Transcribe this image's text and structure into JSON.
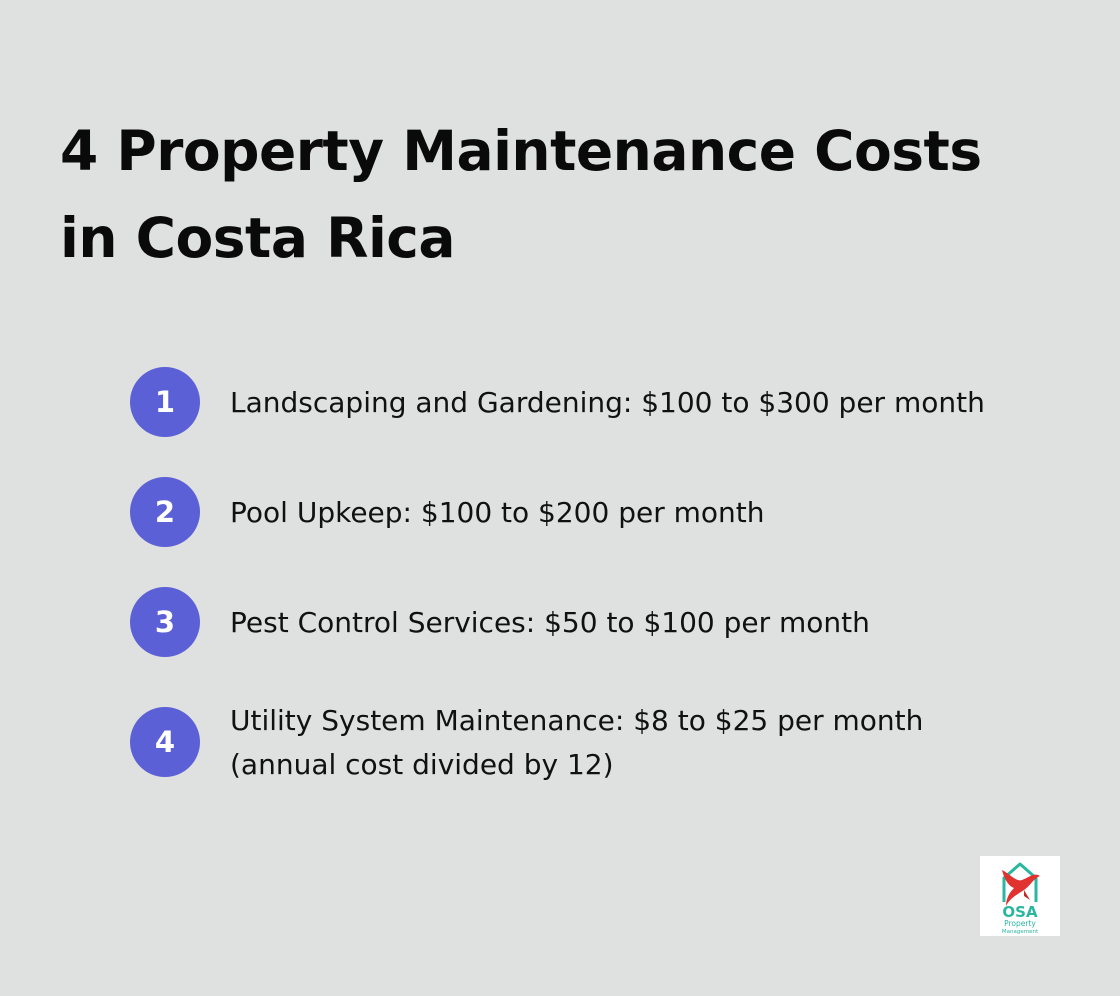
{
  "title": {
    "line1": "4 Property Maintenance Costs",
    "line2": "in Costa Rica"
  },
  "items": [
    {
      "number": "1",
      "lines": [
        "Landscaping and Gardening: $100 to $300 per month"
      ]
    },
    {
      "number": "2",
      "lines": [
        "Pool Upkeep: $100 to $200 per month"
      ]
    },
    {
      "number": "3",
      "lines": [
        "Pest Control Services: $50 to $100 per month"
      ]
    },
    {
      "number": "4",
      "lines": [
        "Utility System Maintenance: $8 to $25 per month",
        "(annual cost divided by 12)"
      ]
    }
  ],
  "colors": {
    "background": "#dfe1e0",
    "badge": "#5c60d6",
    "logo_teal": "#2bb6a0",
    "logo_red": "#e0322f"
  },
  "logo": {
    "name": "OSA",
    "line2": "Property",
    "line3": "Management",
    "icon": "house-bird-logo"
  }
}
